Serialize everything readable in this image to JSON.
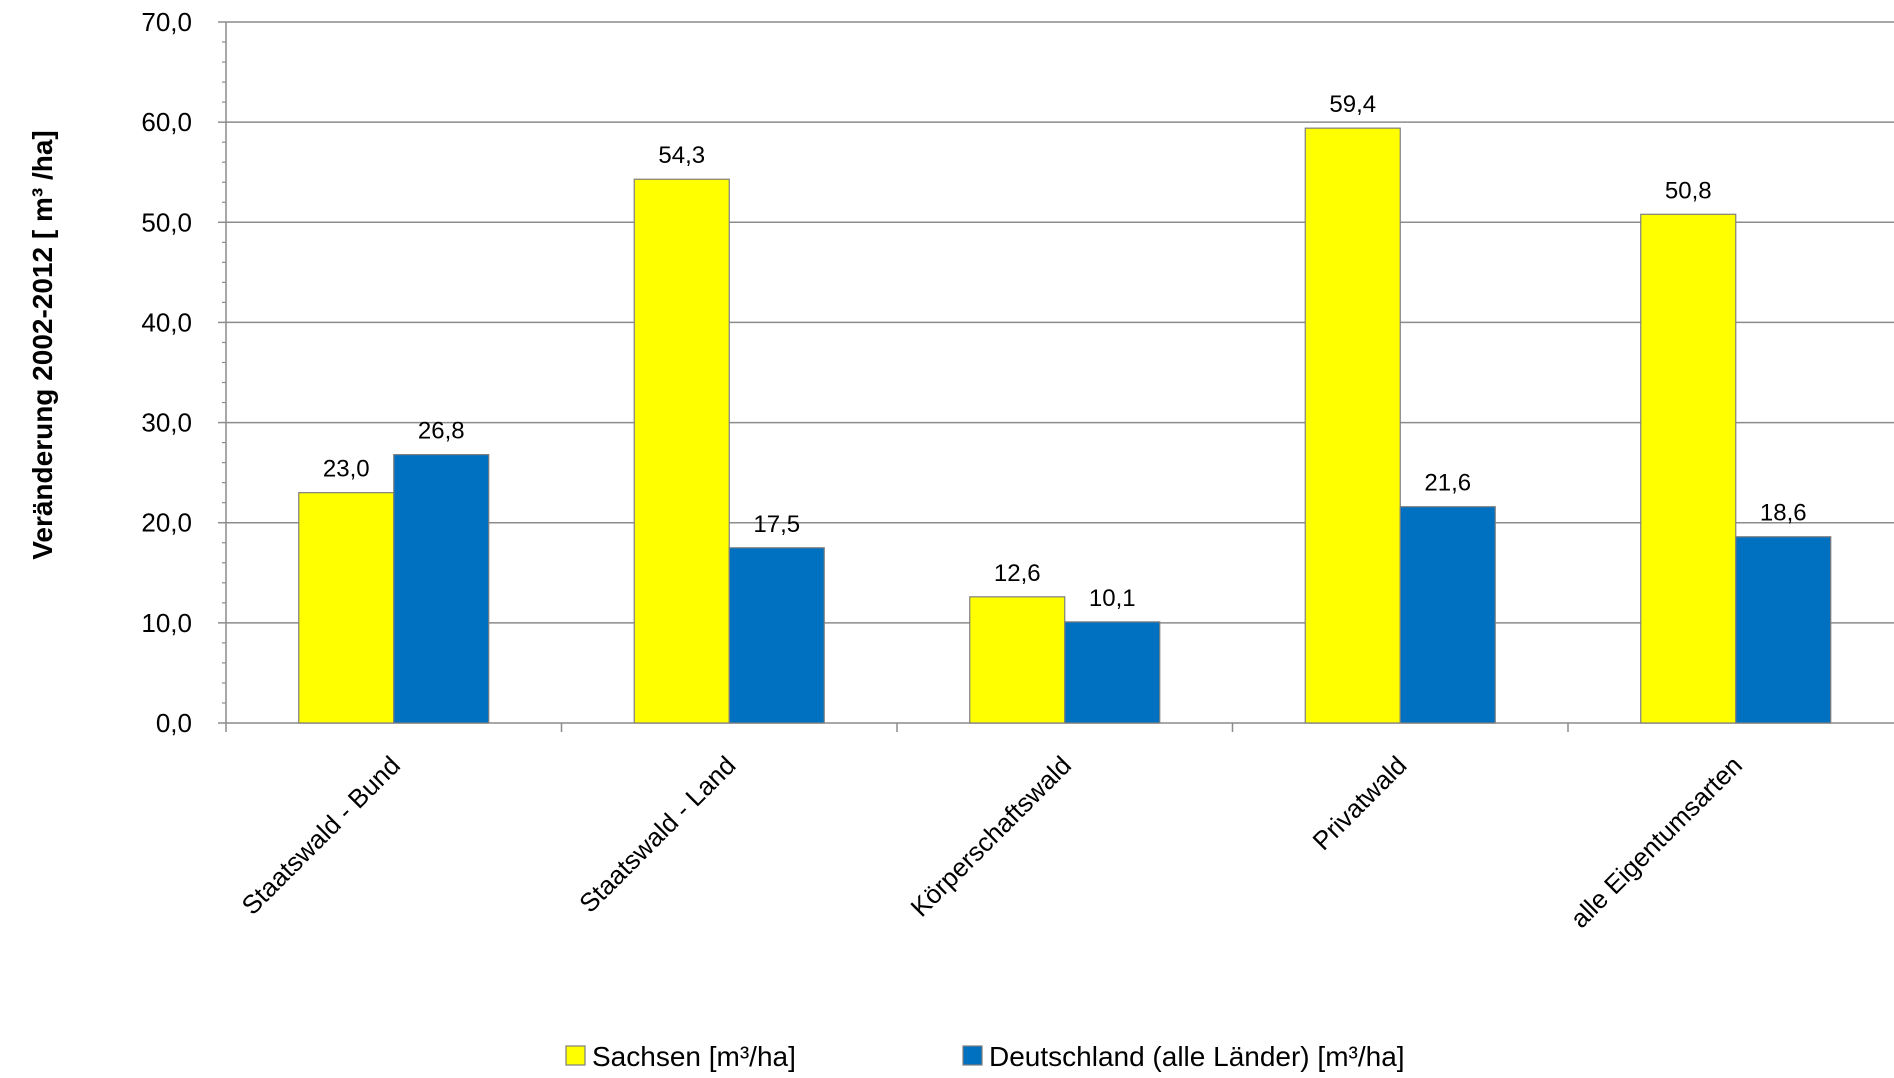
{
  "chart_data": {
    "type": "bar",
    "title": "",
    "xlabel": "",
    "ylabel": "Veränderung 2002-2012 [ m³ /ha]",
    "ylim": [
      0,
      70
    ],
    "y_ticks": [
      "0,0",
      "10,0",
      "20,0",
      "30,0",
      "40,0",
      "50,0",
      "60,0",
      "70,0"
    ],
    "grid": true,
    "legend_position": "bottom",
    "categories": [
      "Staatswald - Bund",
      "Staatswald - Land",
      "Körperschaftswald",
      "Privatwald",
      "alle Eigentumsarten"
    ],
    "series": [
      {
        "name": "Sachsen [m³/ha]",
        "color": "#FFFF00",
        "values": [
          23.0,
          54.3,
          12.6,
          59.4,
          50.8
        ],
        "labels": [
          "23,0",
          "54,3",
          "12,6",
          "59,4",
          "50,8"
        ]
      },
      {
        "name": "Deutschland (alle Länder) [m³/ha]",
        "color": "#0070C0",
        "values": [
          26.8,
          17.5,
          10.1,
          21.6,
          18.6
        ],
        "labels": [
          "26,8",
          "17,5",
          "10,1",
          "21,6",
          "18,6"
        ]
      }
    ]
  }
}
